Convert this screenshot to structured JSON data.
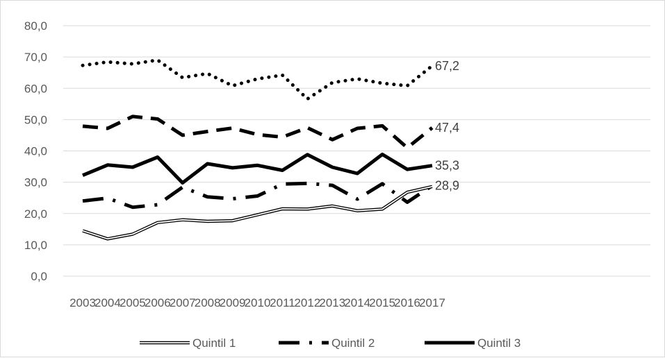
{
  "chart_data": {
    "type": "line",
    "title": "",
    "xlabel": "",
    "ylabel": "",
    "ylim": [
      0,
      80
    ],
    "y_ticks": [
      "0,0",
      "10,0",
      "20,0",
      "30,0",
      "40,0",
      "50,0",
      "60,0",
      "70,0",
      "80,0"
    ],
    "grid": "horizontal",
    "legend_position": "bottom",
    "categories": [
      "2003",
      "2004",
      "2005",
      "2006",
      "2007",
      "2008",
      "2009",
      "2010",
      "2011",
      "2012",
      "2013",
      "2014",
      "2015",
      "2016",
      "2017"
    ],
    "series": [
      {
        "key": "s5",
        "values": [
          67.3,
          68.4,
          67.8,
          69.0,
          63.4,
          64.7,
          60.8,
          63.0,
          64.2,
          56.6,
          61.8,
          63.0,
          61.6,
          60.8,
          67.2
        ],
        "style": "dotted",
        "color": "#000000",
        "end_label": "67,2"
      },
      {
        "key": "s4",
        "values": [
          47.9,
          47.2,
          51.0,
          50.2,
          45.0,
          46.2,
          47.3,
          45.2,
          44.4,
          47.4,
          43.6,
          47.2,
          48.0,
          41.0,
          47.4
        ],
        "style": "dashed",
        "color": "#000000",
        "end_label": "47,4"
      },
      {
        "key": "s3",
        "name": "Quintil 3",
        "values": [
          32.2,
          35.5,
          34.8,
          38.0,
          29.8,
          35.9,
          34.6,
          35.4,
          33.8,
          38.8,
          34.8,
          32.8,
          38.9,
          34.1,
          35.3
        ],
        "style": "solid",
        "color": "#000000",
        "end_label": "35,3"
      },
      {
        "key": "s2",
        "name": "Quintil 2",
        "values": [
          24.0,
          24.9,
          22.0,
          22.8,
          28.4,
          25.3,
          24.7,
          25.6,
          29.4,
          29.6,
          29.0,
          24.6,
          29.5,
          23.6,
          28.9
        ],
        "style": "dash-dot",
        "color": "#000000",
        "end_label": "28,9"
      },
      {
        "key": "s1",
        "name": "Quintil 1",
        "values": [
          14.5,
          11.9,
          13.4,
          17.1,
          18.0,
          17.5,
          17.7,
          19.6,
          21.5,
          21.4,
          22.4,
          20.9,
          21.4,
          26.8,
          28.6
        ],
        "style": "double",
        "color": "#000000",
        "end_label": ""
      }
    ],
    "legend_order": [
      "s1",
      "s2",
      "s3"
    ]
  }
}
